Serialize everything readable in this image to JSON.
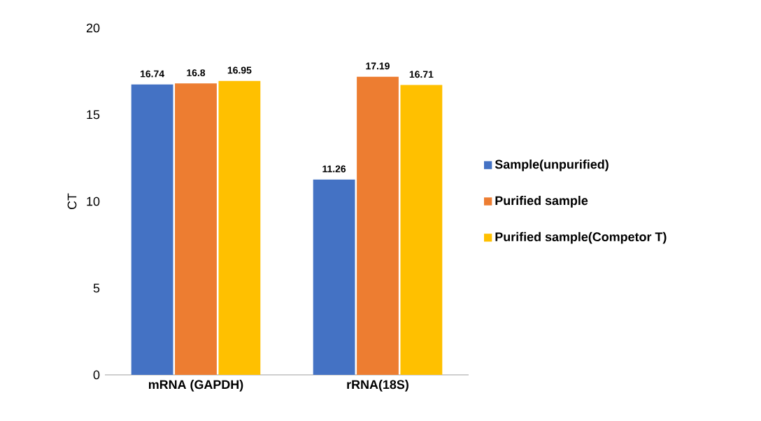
{
  "chart_data": {
    "type": "bar",
    "ylabel": "CT",
    "categories": [
      "mRNA (GAPDH)",
      "rRNA(18S)"
    ],
    "series": [
      {
        "name": "Sample(unpurified)",
        "color": "#4472c4",
        "values": [
          16.74,
          11.26
        ]
      },
      {
        "name": "Purified sample",
        "color": "#ed7d31",
        "values": [
          16.8,
          17.19
        ]
      },
      {
        "name": "Purified sample(Competor T)",
        "color": "#ffc000",
        "values": [
          16.95,
          16.71
        ]
      }
    ],
    "ylim": [
      0,
      20
    ],
    "yticks": [
      0,
      5,
      10,
      15,
      20
    ],
    "grid": false,
    "legend": "right",
    "data_labels": true
  }
}
